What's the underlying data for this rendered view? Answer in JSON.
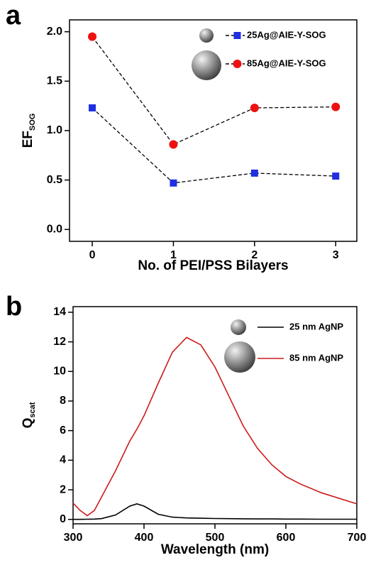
{
  "chart_data": [
    {
      "type": "line",
      "panel_label": "a",
      "xlabel": "No. of PEI/PSS Bilayers",
      "ylabel": "EF",
      "ylabel_sub": "SOG",
      "x": [
        0,
        1,
        2,
        3
      ],
      "series": [
        {
          "name": "25Ag@AIE-Y-SOG",
          "color": "#1f2fe0",
          "marker": "square",
          "values": [
            1.23,
            0.47,
            0.57,
            0.54
          ]
        },
        {
          "name": "85Ag@AIE-Y-SOG",
          "color": "#ee1111",
          "marker": "circle",
          "values": [
            1.95,
            0.86,
            1.23,
            1.24
          ]
        }
      ],
      "line_style": "dashed",
      "line_color": "#000000",
      "xlim": [
        -0.28,
        3.26
      ],
      "xticks": [
        0,
        1,
        2,
        3
      ],
      "ylim": [
        -0.12,
        2.12
      ],
      "yticks": [
        {
          "value": 0,
          "label": "0.0"
        },
        {
          "value": 0.5,
          "label": "0.5"
        },
        {
          "value": 1,
          "label": "1.0"
        },
        {
          "value": 1.5,
          "label": "1.5"
        },
        {
          "value": 2,
          "label": "2.0"
        }
      ]
    },
    {
      "type": "line",
      "panel_label": "b",
      "xlabel": "Wavelength (nm)",
      "ylabel": "Q",
      "ylabel_sub": "scat",
      "x": [
        300,
        310,
        320,
        330,
        340,
        360,
        380,
        390,
        400,
        420,
        440,
        460,
        480,
        500,
        520,
        540,
        560,
        580,
        600,
        620,
        650,
        700
      ],
      "series": [
        {
          "name": "25 nm AgNP",
          "color": "#000000",
          "values": [
            0.0,
            0.0,
            0.01,
            0.02,
            0.05,
            0.3,
            0.9,
            1.05,
            0.9,
            0.35,
            0.15,
            0.1,
            0.08,
            0.06,
            0.05,
            0.04,
            0.03,
            0.03,
            0.02,
            0.02,
            0.01,
            0.01
          ]
        },
        {
          "name": "85 nm AgNP",
          "color": "#cc1a1a",
          "values": [
            1.1,
            0.6,
            0.25,
            0.6,
            1.5,
            3.3,
            5.3,
            6.1,
            7.0,
            9.2,
            11.3,
            12.3,
            11.8,
            10.3,
            8.3,
            6.3,
            4.8,
            3.7,
            2.9,
            2.4,
            1.8,
            1.05
          ]
        }
      ],
      "xlim": [
        300,
        700
      ],
      "xticks": [
        300,
        400,
        500,
        600,
        700
      ],
      "ylim": [
        -0.3,
        14.38
      ],
      "yticks": [
        0,
        2,
        4,
        6,
        8,
        10,
        12,
        14
      ]
    }
  ]
}
